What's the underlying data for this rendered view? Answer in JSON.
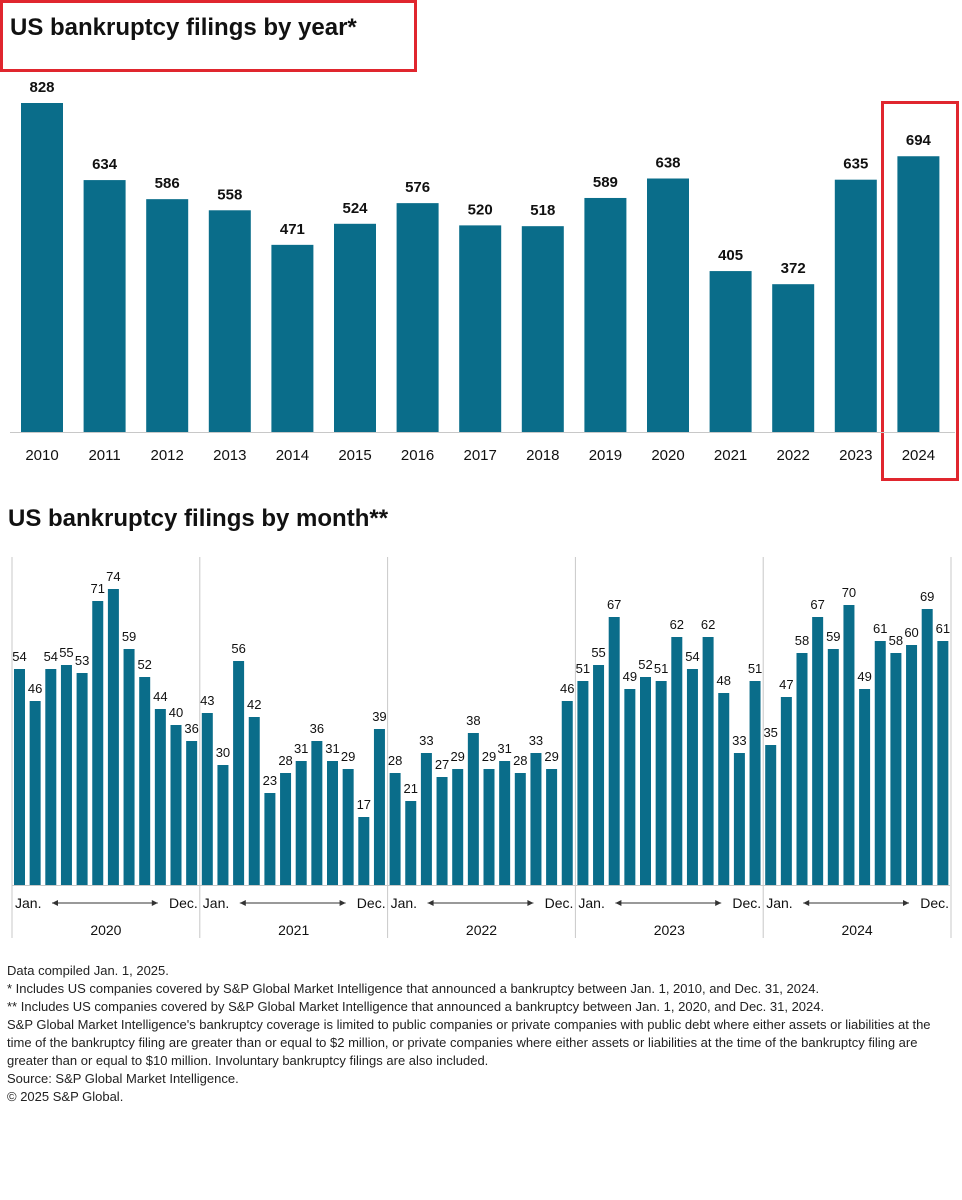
{
  "chart_data": [
    {
      "type": "bar",
      "title": "US bankruptcy filings by year*",
      "categories": [
        "2010",
        "2011",
        "2012",
        "2013",
        "2014",
        "2015",
        "2016",
        "2017",
        "2018",
        "2019",
        "2020",
        "2021",
        "2022",
        "2023",
        "2024"
      ],
      "values": [
        828,
        634,
        586,
        558,
        471,
        524,
        576,
        520,
        518,
        589,
        638,
        405,
        372,
        635,
        694
      ],
      "xlabel": "",
      "ylabel": "",
      "highlighted_category": "2024"
    },
    {
      "type": "bar",
      "title": "US bankruptcy filings by month**",
      "groups": [
        {
          "year": "2020",
          "start_label": "Jan.",
          "end_label": "Dec.",
          "values": [
            54,
            46,
            54,
            55,
            53,
            71,
            74,
            59,
            52,
            44,
            40,
            36
          ]
        },
        {
          "year": "2021",
          "start_label": "Jan.",
          "end_label": "Dec.",
          "values": [
            43,
            30,
            56,
            42,
            23,
            28,
            31,
            36,
            31,
            29,
            17,
            39
          ]
        },
        {
          "year": "2022",
          "start_label": "Jan.",
          "end_label": "Dec.",
          "values": [
            28,
            21,
            33,
            27,
            29,
            38,
            29,
            31,
            28,
            33,
            29,
            46
          ]
        },
        {
          "year": "2023",
          "start_label": "Jan.",
          "end_label": "Dec.",
          "values": [
            51,
            55,
            67,
            49,
            52,
            51,
            62,
            54,
            62,
            48,
            33,
            51
          ]
        },
        {
          "year": "2024",
          "start_label": "Jan.",
          "end_label": "Dec.",
          "values": [
            35,
            47,
            58,
            67,
            59,
            70,
            49,
            61,
            58,
            60,
            69,
            61
          ]
        }
      ],
      "xlabel": "",
      "ylabel": ""
    }
  ],
  "colors": {
    "bar": "#0a6d8a",
    "highlight": "#e0262e"
  },
  "footnotes": [
    "Data compiled Jan. 1, 2025.",
    "* Includes US companies covered by S&P Global Market Intelligence that announced a bankruptcy between Jan. 1, 2010, and Dec. 31, 2024.",
    "** Includes US companies covered by S&P Global Market Intelligence that announced a bankruptcy between Jan. 1, 2020, and Dec. 31, 2024.",
    "S&P Global Market Intelligence's bankruptcy coverage is limited to public companies or private companies with public debt where either assets or liabilities at the time of the bankruptcy filing are greater than or equal to $2 million, or private companies where either assets or liabilities at the time of the bankruptcy filing are greater than or equal to $10 million. Involuntary bankruptcy filings are also included.",
    "Source: S&P Global Market Intelligence.",
    "© 2025 S&P Global."
  ]
}
